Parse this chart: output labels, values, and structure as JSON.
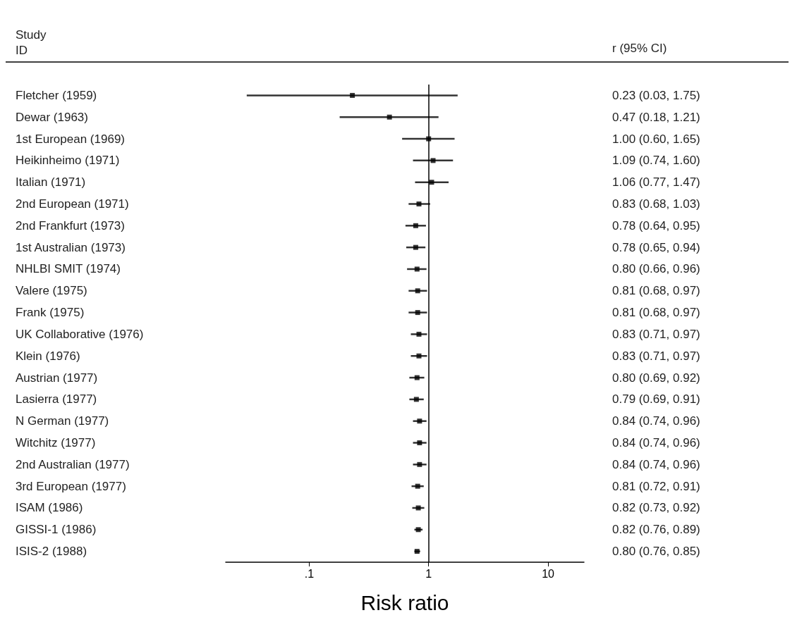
{
  "chart_data": {
    "type": "scatter",
    "orientation": "horizontal",
    "ylabel": "Study\nID",
    "xlabel": "Risk ratio",
    "annotations": [
      "r (95% CI)"
    ],
    "categories": [
      "Fletcher (1959)",
      "Dewar (1963)",
      "1st European (1969)",
      "Heikinheimo (1971)",
      "Italian (1971)",
      "2nd European (1971)",
      "2nd Frankfurt (1973)",
      "1st Australian (1973)",
      "NHLBI SMIT (1974)",
      "Valere (1975)",
      "Frank (1975)",
      "UK Collaborative (1976)",
      "Klein (1976)",
      "Austrian (1977)",
      "Lasierra (1977)",
      "N German (1977)",
      "Witchitz (1977)",
      "2nd Australian (1977)",
      "3rd European (1977)",
      "ISAM (1986)",
      "GISSI-1 (1986)",
      "ISIS-2 (1988)"
    ],
    "values": [
      0.23,
      0.47,
      1.0,
      1.09,
      1.06,
      0.83,
      0.78,
      0.78,
      0.8,
      0.81,
      0.81,
      0.83,
      0.83,
      0.8,
      0.79,
      0.84,
      0.84,
      0.84,
      0.81,
      0.82,
      0.82,
      0.8
    ],
    "errors": [
      [
        0.03,
        1.75
      ],
      [
        0.18,
        1.21
      ],
      [
        0.6,
        1.65
      ],
      [
        0.74,
        1.6
      ],
      [
        0.77,
        1.47
      ],
      [
        0.68,
        1.03
      ],
      [
        0.64,
        0.95
      ],
      [
        0.65,
        0.94
      ],
      [
        0.66,
        0.96
      ],
      [
        0.68,
        0.97
      ],
      [
        0.68,
        0.97
      ],
      [
        0.71,
        0.97
      ],
      [
        0.71,
        0.97
      ],
      [
        0.69,
        0.92
      ],
      [
        0.69,
        0.91
      ],
      [
        0.74,
        0.96
      ],
      [
        0.74,
        0.96
      ],
      [
        0.74,
        0.96
      ],
      [
        0.72,
        0.91
      ],
      [
        0.73,
        0.92
      ],
      [
        0.76,
        0.89
      ],
      [
        0.76,
        0.85
      ]
    ],
    "value_labels": [
      "0.23 (0.03, 1.75)",
      "0.47 (0.18, 1.21)",
      "1.00 (0.60, 1.65)",
      "1.09 (0.74, 1.60)",
      "1.06 (0.77, 1.47)",
      "0.83 (0.68, 1.03)",
      "0.78 (0.64, 0.95)",
      "0.78 (0.65, 0.94)",
      "0.80 (0.66, 0.96)",
      "0.81 (0.68, 0.97)",
      "0.81 (0.68, 0.97)",
      "0.83 (0.71, 0.97)",
      "0.83 (0.71, 0.97)",
      "0.80 (0.69, 0.92)",
      "0.79 (0.69, 0.91)",
      "0.84 (0.74, 0.96)",
      "0.84 (0.74, 0.96)",
      "0.84 (0.74, 0.96)",
      "0.81 (0.72, 0.91)",
      "0.82 (0.73, 0.92)",
      "0.82 (0.76, 0.89)",
      "0.80 (0.76, 0.85)"
    ],
    "color": "#000000",
    "marker": "square",
    "log": "x",
    "xlim": [
      0.02,
      20
    ],
    "xticks": [
      {
        "value": 0.1,
        "label": ".1"
      },
      1,
      10
    ],
    "ref_lines": [
      {
        "axis": "x",
        "value": 1,
        "color": "#000000"
      }
    ]
  }
}
